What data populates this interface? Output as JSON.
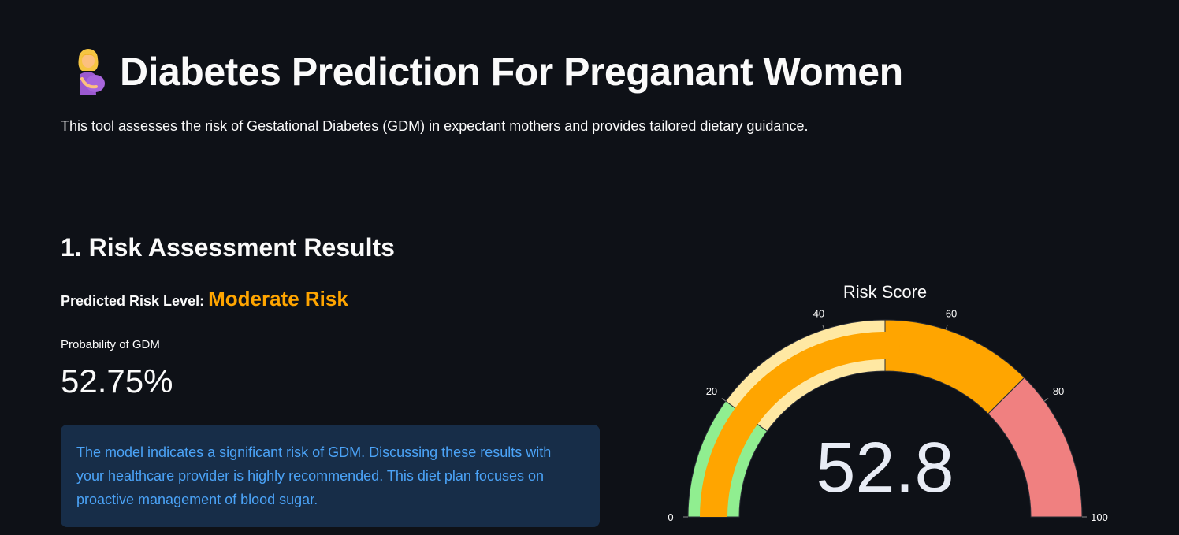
{
  "header": {
    "emoji_icon": "pregnant-woman-icon",
    "title": "Diabetes Prediction For Preganant Women",
    "subtitle": "This tool assesses the risk of Gestational Diabetes (GDM) in expectant mothers and provides tailored dietary guidance."
  },
  "section": {
    "heading": "1. Risk Assessment Results"
  },
  "risk": {
    "label": "Predicted Risk Level:",
    "value": "Moderate Risk",
    "value_color": "#ffa500"
  },
  "metric": {
    "label": "Probability of GDM",
    "value": "52.75%"
  },
  "info": {
    "message": "The model indicates a significant risk of GDM. Discussing these results with your healthcare provider is highly recommended. This diet plan focuses on proactive management of blood sugar."
  },
  "chart_data": {
    "type": "gauge",
    "title": "Risk Score",
    "value": 52.75,
    "value_label": "52.8",
    "range": [
      0,
      100
    ],
    "ticks": [
      0,
      20,
      40,
      60,
      80,
      100
    ],
    "tick_labels": [
      "0",
      "20",
      "40",
      "60",
      "80",
      "100"
    ],
    "steps": [
      {
        "range": [
          0,
          20
        ],
        "color": "#90ee90"
      },
      {
        "range": [
          20,
          50
        ],
        "color": "#ffe8a3"
      },
      {
        "range": [
          50,
          75
        ],
        "color": "#ffa500"
      },
      {
        "range": [
          75,
          100
        ],
        "color": "#f08080"
      }
    ],
    "bar_color": "#ffa500"
  }
}
